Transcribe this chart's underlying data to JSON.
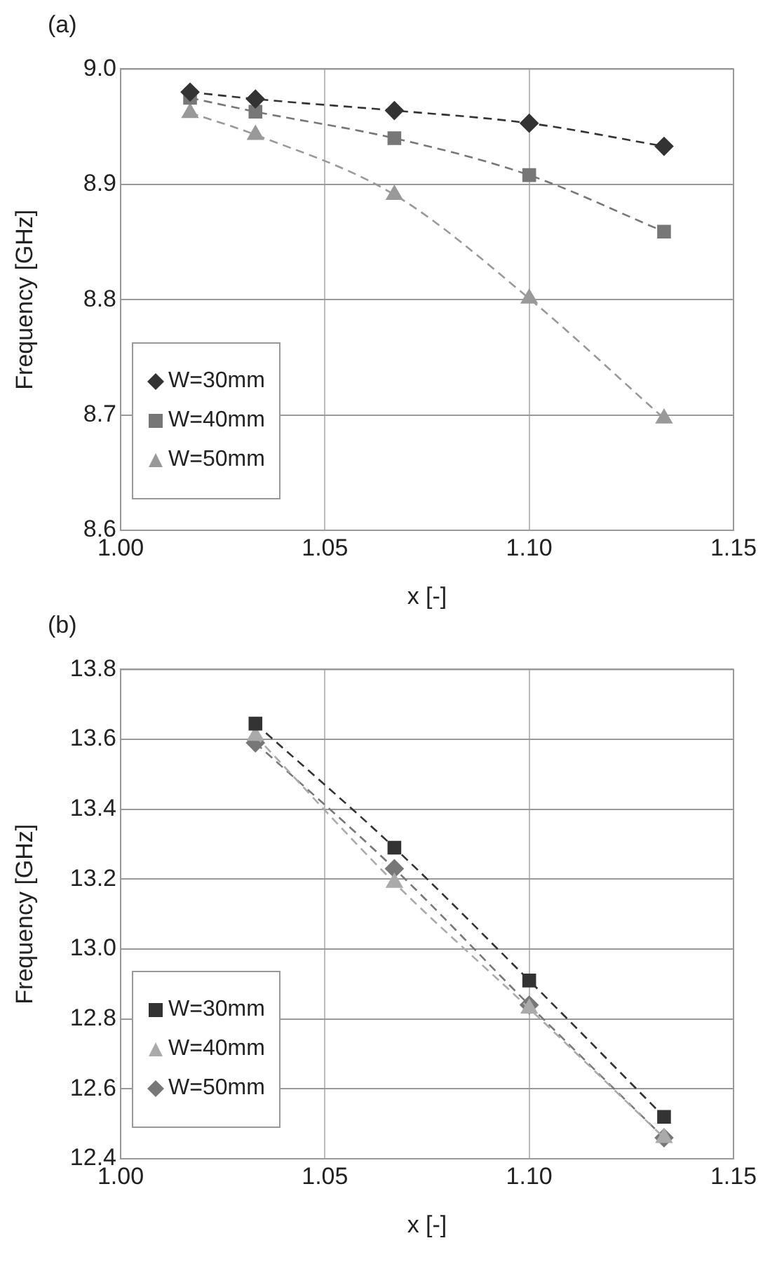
{
  "chart_data": [
    {
      "type": "line",
      "title": "(a)",
      "xlabel": "x [-]",
      "ylabel": "Frequency [GHz]",
      "xlim": [
        1.0,
        1.15
      ],
      "xticks": [
        {
          "value": 1.0,
          "label": "1.00"
        },
        {
          "value": 1.05,
          "label": "1.05"
        },
        {
          "value": 1.1,
          "label": "1.10"
        },
        {
          "value": 1.15,
          "label": "1.15"
        }
      ],
      "ylim": [
        8.6,
        9.0
      ],
      "yticks": [
        {
          "value": 8.6,
          "label": "8.6"
        },
        {
          "value": 8.7,
          "label": "8.7"
        },
        {
          "value": 8.8,
          "label": "8.8"
        },
        {
          "value": 8.9,
          "label": "8.9"
        },
        {
          "value": 9.0,
          "label": "9.0"
        }
      ],
      "grid": true,
      "legend": "bottom left",
      "line_style": "dashed",
      "x": [
        1.017,
        1.033,
        1.067,
        1.1,
        1.133
      ],
      "series": [
        {
          "name": "W=30mm",
          "color": "#333333",
          "marker": "diamond",
          "values": [
            8.98,
            8.974,
            8.964,
            8.953,
            8.933
          ]
        },
        {
          "name": "W=40mm",
          "color": "#777777",
          "marker": "square",
          "values": [
            8.975,
            8.963,
            8.94,
            8.908,
            8.859
          ]
        },
        {
          "name": "W=50mm",
          "color": "#999999",
          "marker": "triangle",
          "values": [
            8.962,
            8.943,
            8.891,
            8.801,
            8.697
          ]
        }
      ]
    },
    {
      "type": "line",
      "title": "(b)",
      "xlabel": "x [-]",
      "ylabel": "Frequency [GHz]",
      "xlim": [
        1.0,
        1.15
      ],
      "xticks": [
        {
          "value": 1.0,
          "label": "1.00"
        },
        {
          "value": 1.05,
          "label": "1.05"
        },
        {
          "value": 1.1,
          "label": "1.10"
        },
        {
          "value": 1.15,
          "label": "1.15"
        }
      ],
      "ylim": [
        12.4,
        13.8
      ],
      "yticks": [
        {
          "value": 12.4,
          "label": "12.4"
        },
        {
          "value": 12.6,
          "label": "12.6"
        },
        {
          "value": 12.8,
          "label": "12.8"
        },
        {
          "value": 13.0,
          "label": "13.0"
        },
        {
          "value": 13.2,
          "label": "13.2"
        },
        {
          "value": 13.4,
          "label": "13.4"
        },
        {
          "value": 13.6,
          "label": "13.6"
        },
        {
          "value": 13.8,
          "label": "13.8"
        }
      ],
      "grid": true,
      "legend": "bottom left",
      "line_style": "dashed",
      "x": [
        1.033,
        1.067,
        1.1,
        1.133
      ],
      "series": [
        {
          "name": "W=30mm",
          "color": "#333333",
          "marker": "square",
          "values": [
            13.645,
            13.29,
            12.91,
            12.52
          ]
        },
        {
          "name": "W=40mm",
          "color": "#aaaaaa",
          "marker": "triangle",
          "values": [
            13.61,
            13.19,
            12.83,
            12.46
          ]
        },
        {
          "name": "W=50mm",
          "color": "#777777",
          "marker": "diamond",
          "values": [
            13.59,
            13.23,
            12.84,
            12.46
          ]
        }
      ]
    }
  ]
}
